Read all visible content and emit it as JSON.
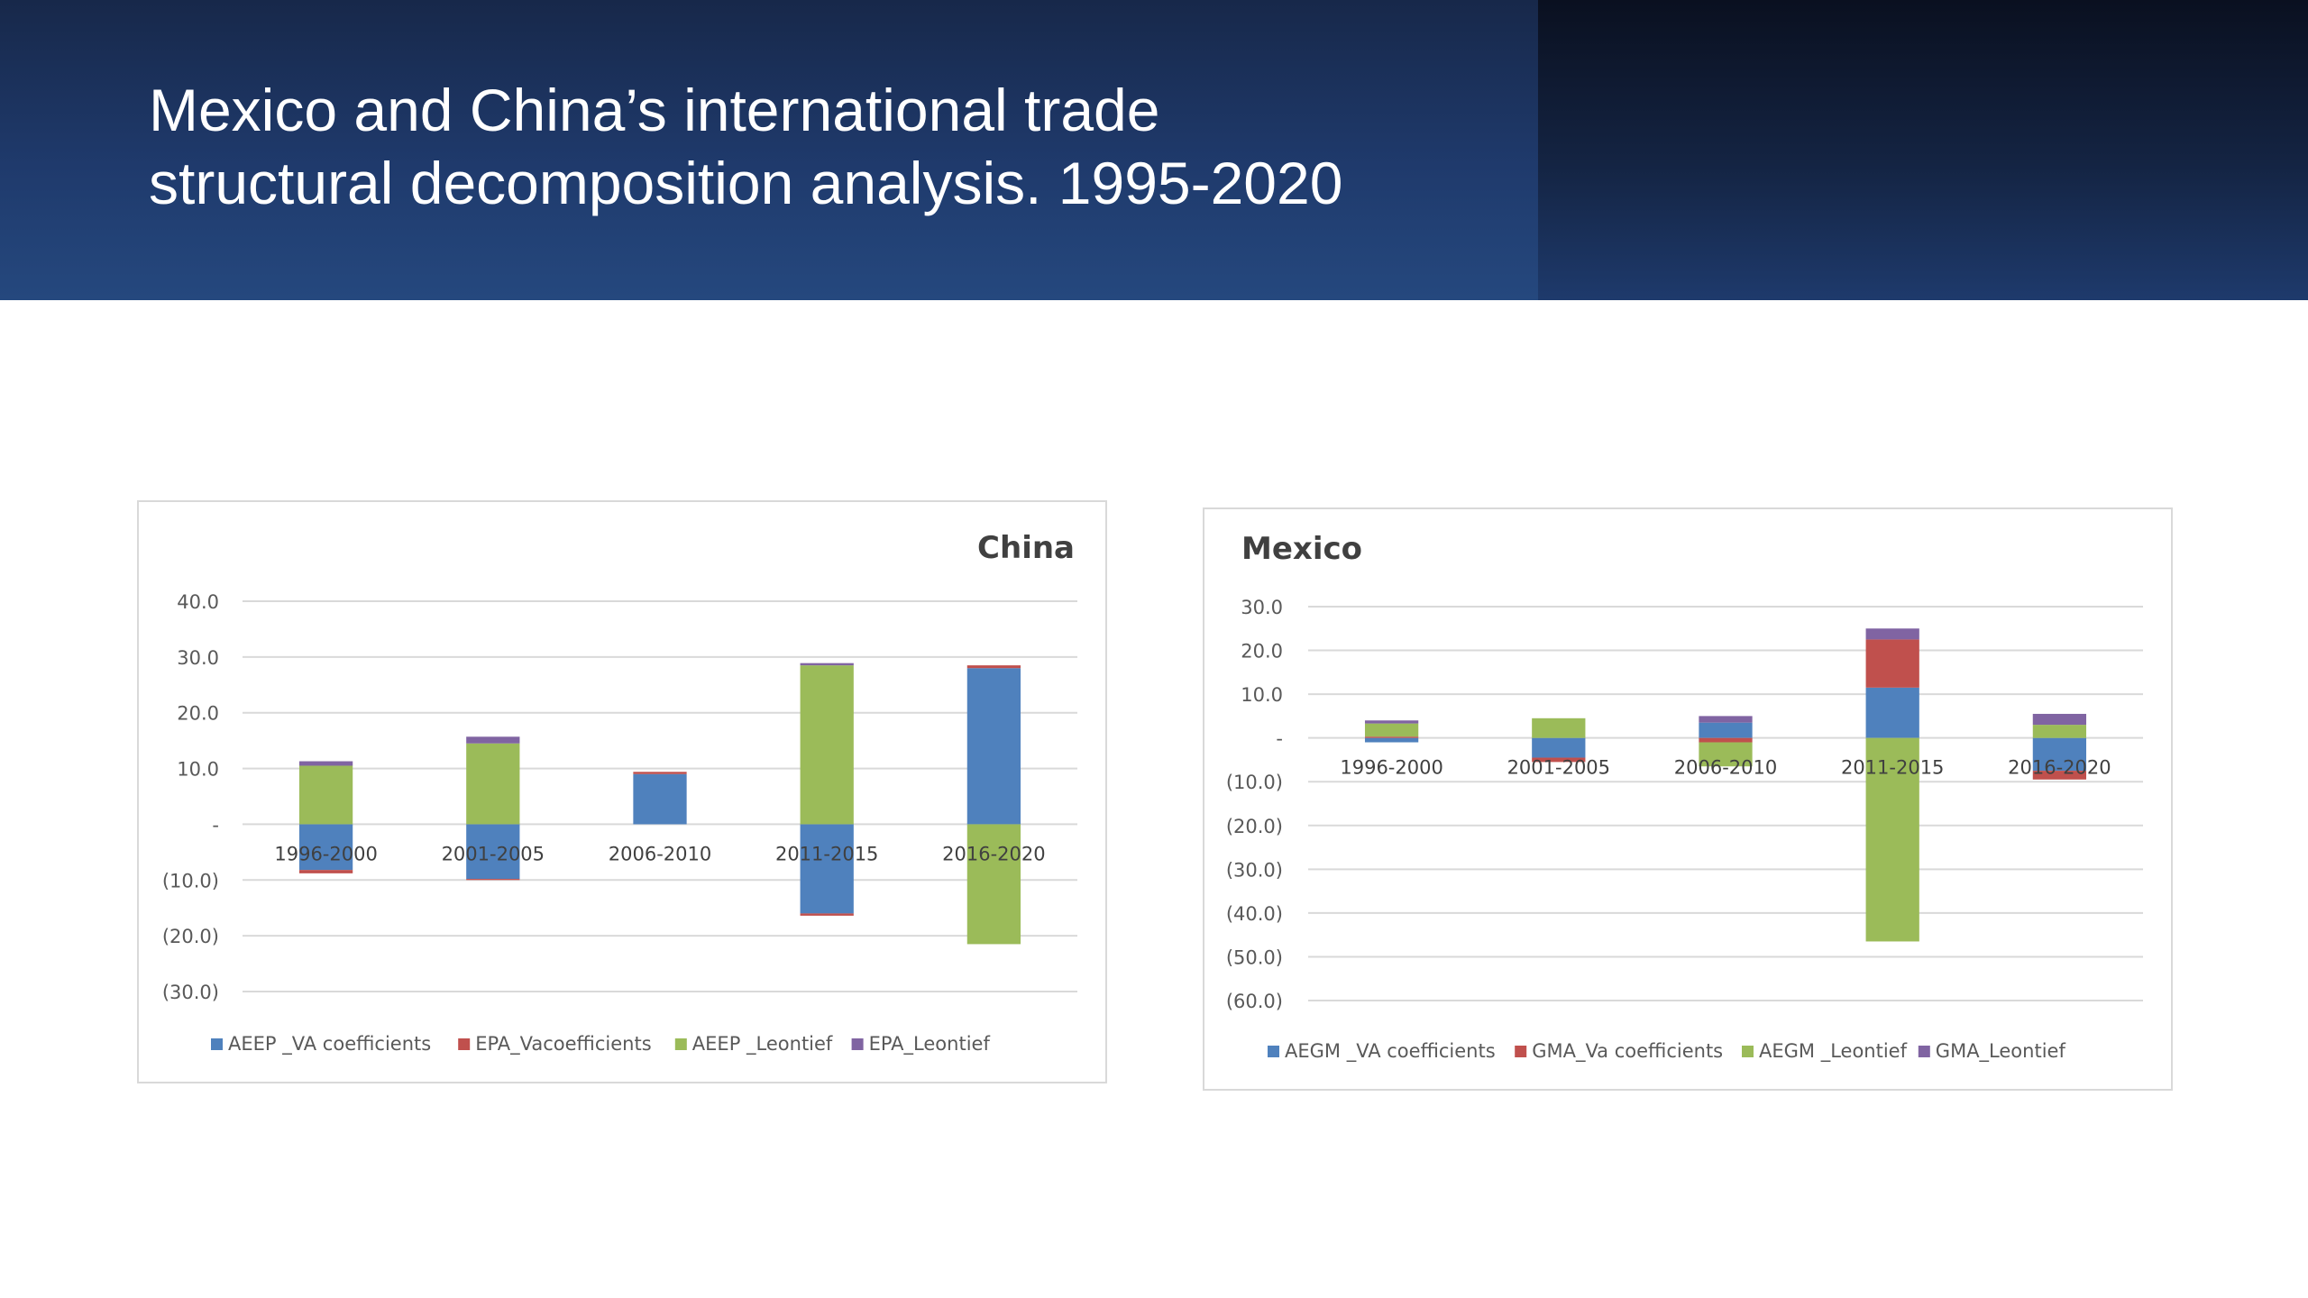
{
  "slide": {
    "title_line1": "Mexico and China’s international trade",
    "title_line2": "structural decomposition analysis. 1995-2020"
  },
  "chart_data": [
    {
      "type": "bar",
      "stacked": true,
      "title": "China",
      "title_position": "top-right",
      "categories": [
        "1996-2000",
        "2001-2005",
        "2006-2010",
        "2011-2015",
        "2016-2020"
      ],
      "series": [
        {
          "name": "AEEP _VA coefficients",
          "color": "#4f81bd",
          "values": [
            -8.2,
            -9.8,
            9.0,
            -16.0,
            28.0
          ]
        },
        {
          "name": "EPA_Vacoefficients",
          "color": "#c0504d",
          "values": [
            -0.6,
            -0.2,
            0.4,
            -0.4,
            0.5
          ]
        },
        {
          "name": "AEEP _Leontief",
          "color": "#9bbb59",
          "values": [
            10.5,
            14.5,
            0.0,
            28.5,
            -21.5
          ]
        },
        {
          "name": "EPA_Leontief",
          "color": "#8064a2",
          "values": [
            0.8,
            1.2,
            0.0,
            0.4,
            0.0
          ]
        }
      ],
      "y_ticks": [
        "40.0",
        "30.0",
        "20.0",
        "10.0",
        "-",
        "(10.0)",
        "(20.0)",
        "(30.0)"
      ],
      "ylim": [
        -30,
        40
      ],
      "grid": true,
      "legend_position": "bottom"
    },
    {
      "type": "bar",
      "stacked": true,
      "title": "Mexico",
      "title_position": "top-left",
      "categories": [
        "1996-2000",
        "2001-2005",
        "2006-2010",
        "2011-2015",
        "2016-2020"
      ],
      "series": [
        {
          "name": "AEGM _VA coefficients",
          "color": "#4f81bd",
          "values": [
            -1.0,
            -4.5,
            3.5,
            11.5,
            -7.5
          ]
        },
        {
          "name": "GMA_Va coefficients",
          "color": "#c0504d",
          "values": [
            0.3,
            -1.0,
            -1.0,
            11.0,
            -2.0
          ]
        },
        {
          "name": "AEGM _Leontief",
          "color": "#9bbb59",
          "values": [
            3.0,
            4.5,
            -5.5,
            -46.5,
            3.0
          ]
        },
        {
          "name": "GMA_Leontief",
          "color": "#8064a2",
          "values": [
            0.7,
            0.0,
            1.5,
            2.5,
            2.5
          ]
        }
      ],
      "y_ticks": [
        "30.0",
        "20.0",
        "10.0",
        "-",
        "(10.0)",
        "(20.0)",
        "(30.0)",
        "(40.0)",
        "(50.0)",
        "(60.0)"
      ],
      "ylim": [
        -60,
        30
      ],
      "grid": true,
      "legend_position": "bottom"
    }
  ]
}
